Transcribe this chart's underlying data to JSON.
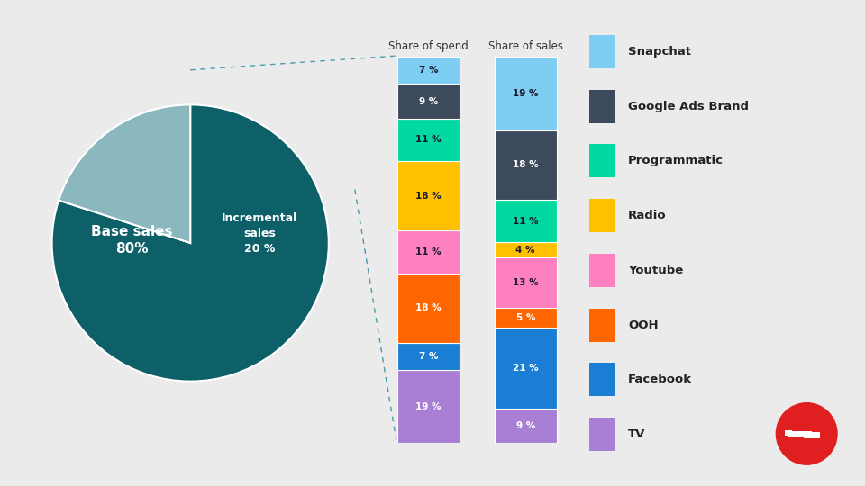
{
  "background_color": "#ebebeb",
  "pie_values": [
    80,
    20
  ],
  "pie_colors": [
    "#0d5f68",
    "#8ab8be"
  ],
  "spend_values": [
    7,
    9,
    11,
    18,
    11,
    18,
    7,
    19
  ],
  "sales_values": [
    19,
    18,
    11,
    4,
    13,
    5,
    21,
    9
  ],
  "bar_colors": [
    "#7ecef4",
    "#3d4a5c",
    "#00d9a0",
    "#ffc000",
    "#ff80c0",
    "#ff6600",
    "#1a7fd4",
    "#a87fd4"
  ],
  "bar_text_colors": [
    "#1a1a2e",
    "#ffffff",
    "#1a1a2e",
    "#1a1a2e",
    "#1a1a2e",
    "#ffffff",
    "#ffffff",
    "#ffffff"
  ],
  "channel_labels": [
    "Snapchat",
    "Google Ads Brand",
    "Programmatic",
    "Radio",
    "Youtube",
    "OOH",
    "Facebook",
    "TV"
  ],
  "spend_title": "Share of spend",
  "sales_title": "Share of sales",
  "dashed_line_color": "#4a9aaa",
  "pie_label_base": "Base sales\n80%",
  "pie_label_incr": "Incremental\nsales\n20 %"
}
